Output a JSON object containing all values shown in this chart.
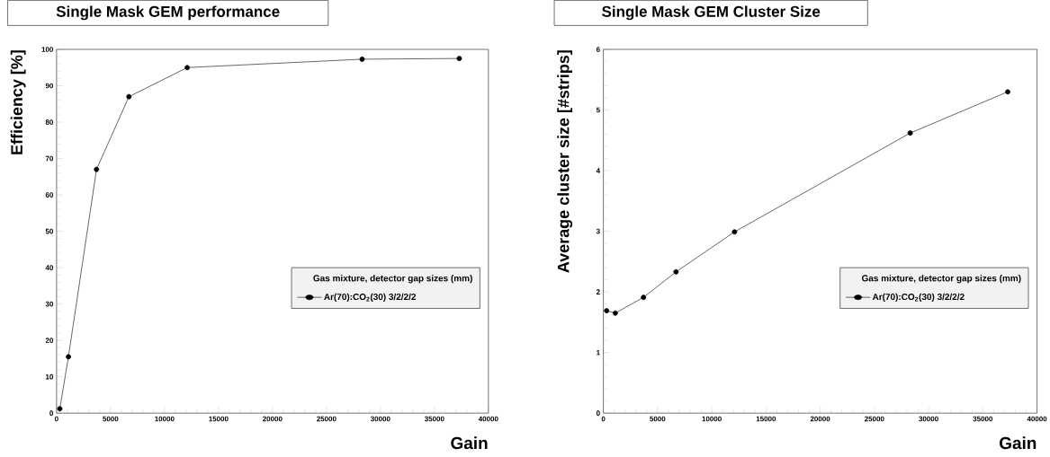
{
  "chart_data": [
    {
      "type": "line",
      "title": "Single Mask GEM performance",
      "xlabel": "Gain",
      "ylabel": "Efficiency [%]",
      "legend_title": "Gas mixture, detector gap sizes (mm)",
      "x": [
        300,
        1100,
        3700,
        6700,
        12100,
        28300,
        37300
      ],
      "series": [
        {
          "name": "Ar(70):CO$_{2}$(30) 3/2/2/2",
          "color": "#000000",
          "values": [
            1.2,
            15.5,
            67,
            87,
            95,
            97.3,
            97.5
          ]
        }
      ],
      "xlim": [
        0,
        40000
      ],
      "ylim": [
        0,
        100
      ],
      "xticks": [
        0,
        5000,
        10000,
        15000,
        20000,
        25000,
        30000,
        35000,
        40000
      ],
      "yticks": [
        0,
        10,
        20,
        30,
        40,
        50,
        60,
        70,
        80,
        90,
        100
      ],
      "marker": "circle",
      "legend": "right"
    },
    {
      "type": "line",
      "title": "Single Mask GEM Cluster Size",
      "xlabel": "Gain",
      "ylabel": "Average cluster size [#strips]",
      "legend_title": "Gas mixture, detector gap sizes (mm)",
      "x": [
        300,
        1100,
        3700,
        6700,
        12100,
        28300,
        37300
      ],
      "series": [
        {
          "name": "Ar(70):CO$_{2}$(30) 3/2/2/2",
          "color": "#000000",
          "values": [
            1.69,
            1.65,
            1.91,
            2.33,
            2.99,
            4.62,
            5.3
          ]
        }
      ],
      "xlim": [
        0,
        40000
      ],
      "ylim": [
        0,
        6
      ],
      "xticks": [
        0,
        5000,
        10000,
        15000,
        20000,
        25000,
        30000,
        35000,
        40000
      ],
      "yticks": [
        0,
        1,
        2,
        3,
        4,
        5,
        6
      ],
      "marker": "circle",
      "legend": "right"
    }
  ]
}
